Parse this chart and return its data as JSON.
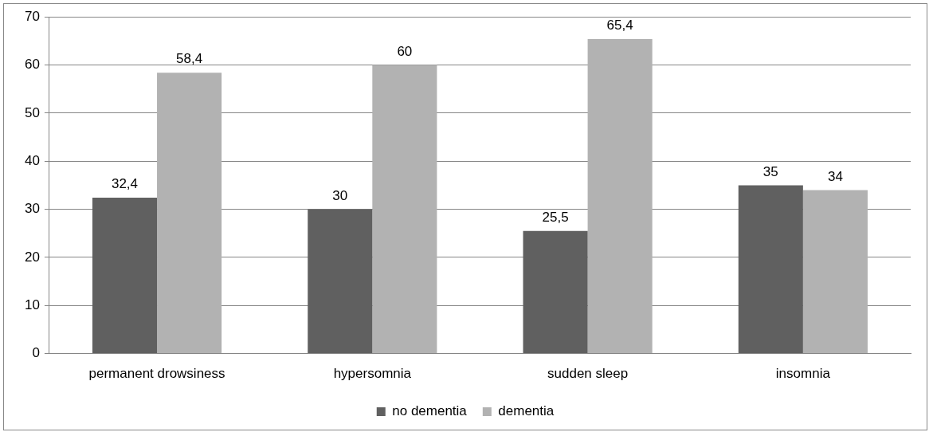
{
  "chart_data": {
    "type": "bar",
    "categories": [
      "permanent drowsiness",
      "hypersomnia",
      "sudden sleep",
      "insomnia"
    ],
    "series": [
      {
        "name": "no dementia",
        "color": "#606060",
        "values": [
          32.4,
          30,
          25.5,
          35
        ],
        "value_labels": [
          "32,4",
          "30",
          "25,5",
          "35"
        ]
      },
      {
        "name": "dementia",
        "color": "#b2b2b2",
        "values": [
          58.4,
          60,
          65.4,
          34
        ],
        "value_labels": [
          "58,4",
          "60",
          "65,4",
          "34"
        ]
      }
    ],
    "ylim": [
      0,
      70
    ],
    "yticks": [
      0,
      10,
      20,
      30,
      40,
      50,
      60,
      70
    ],
    "grid": "y",
    "legend": "bottom"
  }
}
